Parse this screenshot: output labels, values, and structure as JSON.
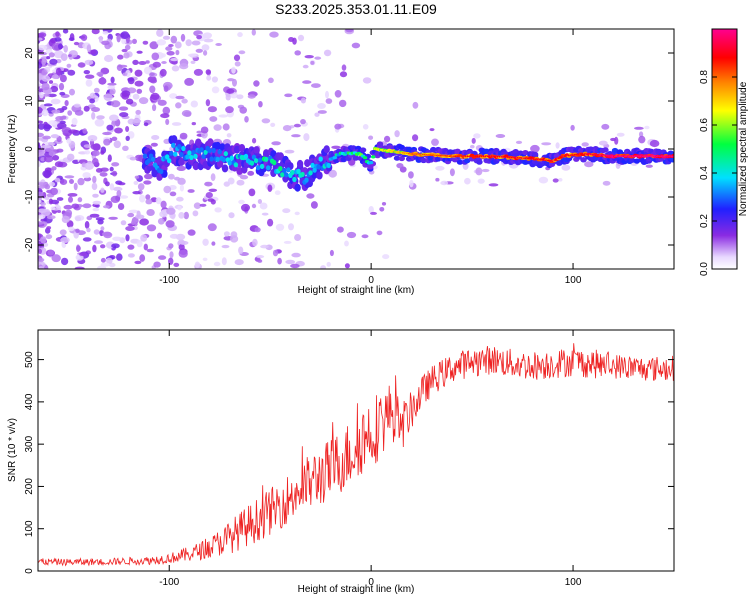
{
  "title": "S233.2025.353.01.11.E09",
  "colors": {
    "snr_line": "#ee2222",
    "axis": "#000000"
  },
  "chart_data": [
    {
      "type": "heatmap",
      "xlabel": "Height of straight line (km)",
      "ylabel": "Frequency (Hz)",
      "xlim": [
        -165,
        150
      ],
      "ylim": [
        -25,
        25
      ],
      "xticks": [
        -100,
        0,
        100
      ],
      "yticks": [
        -20,
        -10,
        0,
        10,
        20
      ],
      "colorbar": {
        "label": "Normalized spectral amplitude",
        "range": [
          0,
          1
        ],
        "ticks": [
          0.0,
          0.2,
          0.4,
          0.6,
          0.8
        ]
      },
      "ridge": {
        "x": [
          -110,
          -105,
          -98,
          -90,
          -80,
          -70,
          -60,
          -50,
          -40,
          -33,
          -28,
          -20,
          -15,
          -5,
          -1,
          0,
          2,
          10,
          20,
          40,
          60,
          80,
          90,
          95,
          105,
          120,
          150
        ],
        "frequency": [
          -2,
          -4.5,
          0,
          -1,
          -1,
          -2,
          -2.5,
          -3,
          -5,
          -6,
          -4,
          -2,
          -1,
          -1,
          -3,
          -3,
          0,
          -0.5,
          -1,
          -1.5,
          -1.5,
          -2,
          -2.5,
          -1.5,
          -1,
          -1.5,
          -1.5
        ],
        "amplitude": [
          0.35,
          0.4,
          0.45,
          0.4,
          0.45,
          0.45,
          0.5,
          0.5,
          0.5,
          0.5,
          0.45,
          0.45,
          0.5,
          0.6,
          0.5,
          0.5,
          0.65,
          0.7,
          0.8,
          0.85,
          0.9,
          0.9,
          0.9,
          0.9,
          0.9,
          1.0,
          1.0
        ]
      }
    },
    {
      "type": "line",
      "xlabel": "Height of straight line (km)",
      "ylabel": "SNR (10 * v/v)",
      "xlim": [
        -165,
        150
      ],
      "ylim": [
        0,
        570
      ],
      "xticks": [
        -100,
        0,
        100
      ],
      "yticks": [
        0,
        100,
        200,
        300,
        400,
        500
      ],
      "series": [
        {
          "name": "SNR",
          "x": [
            -165,
            -150,
            -130,
            -110,
            -100,
            -90,
            -80,
            -70,
            -60,
            -50,
            -40,
            -30,
            -20,
            -10,
            -5,
            0,
            5,
            10,
            15,
            20,
            25,
            30,
            40,
            50,
            60,
            70,
            80,
            90,
            100,
            110,
            120,
            130,
            140,
            150
          ],
          "y": [
            22,
            21,
            22,
            25,
            30,
            40,
            55,
            80,
            110,
            140,
            175,
            210,
            240,
            280,
            310,
            330,
            350,
            380,
            340,
            380,
            420,
            450,
            480,
            495,
            500,
            490,
            485,
            490,
            495,
            490,
            485,
            480,
            478,
            480
          ],
          "noise_amplitude": [
            8,
            8,
            8,
            10,
            12,
            18,
            25,
            40,
            50,
            55,
            60,
            70,
            75,
            80,
            85,
            90,
            80,
            70,
            60,
            45,
            40,
            35,
            35,
            35,
            35,
            35,
            35,
            35,
            35,
            35,
            30,
            30,
            30,
            30
          ]
        }
      ]
    }
  ]
}
